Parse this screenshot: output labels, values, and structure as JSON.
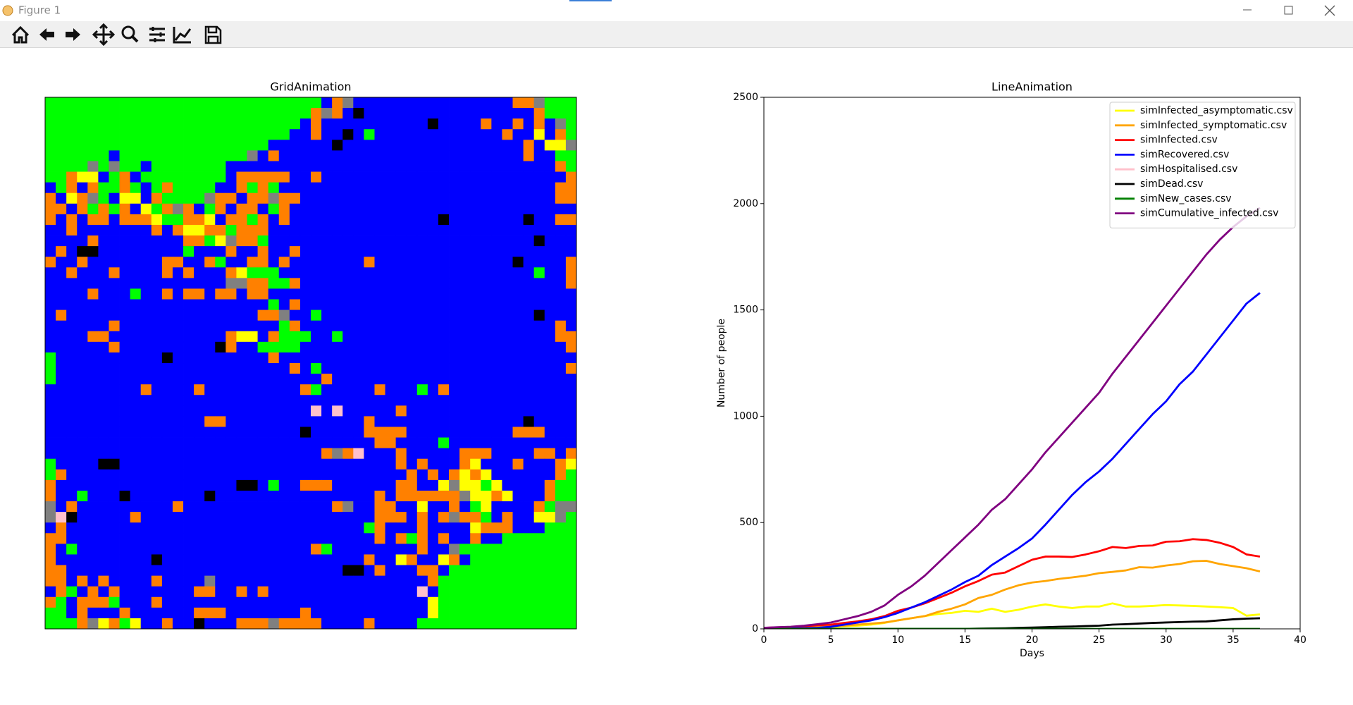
{
  "window": {
    "title": "Figure 1"
  },
  "chart_data": [
    {
      "type": "grid",
      "title": "GridAnimation",
      "palette": {
        "G": "#00ff00",
        "B": "#0000ff",
        "O": "#ff8000",
        "Y": "#ffff00",
        "K": "#000000",
        "A": "#808080",
        "P": "#ffc0cb"
      },
      "cells": [
        "GGGGGGGGGGGGGGGGGGGGGGGGGGBOABBBBBBBBBBBBBBBOOAGGG",
        "GGGGGGGGGGGGGGGGGGGGGGGGGOAOBKBBBBBBBBBBBBBBBBOGGG",
        "GGGGGGGGGGGGGGGGGGGGGGGGBOBBBBBBBBBBKBBBBOBBOBOBAG",
        "GGGGGGGGGGGGGGGGGGGGGGGBBOBBKBGBBBBBBBBBBBBOBBYBOG",
        "GGGGGGGGGGGGGGGGGGGGGBBBBBBKBBBBBBBBBBBBBBBBBOBYYA",
        "GGGGGGBGGGGGGGGGGGGABOBBBBBBBBBBBBBBBBBBBBBBBOBBGG",
        "GGGGAGAGGBGGGGGGGBBBBBBBBBBBBBBBBBBBBBBBBBBBBBBBOG",
        "GGOYYBGOBGGGGGGGGBOOOOOBBOBBBBBBBBBBBBBBBBBBBBBBBO",
        "BGOBOGGOGBGOGGGGBBOGOGBBBBBBBBBBBBBBBBBBBBBBBBBBOO",
        "OBYOAGBYYBOGGGGAOOBOOAOOBBBBBBBBBBBBBBBBBBBBBBBBOO",
        "OOBOGOGOBYGOAOBGOBOOBGOBBBBBBBBBBBBBBBBBBBBBBBBBBB",
        "OBOBOOBOOOYGGOOYBOOGOBOBBBBBBBBBBBBBBKBBBBBBBKBBOO",
        "BBOBBBBBBBOBOYYOOGOOOBBBBBBBBBBBBBBBBBBBBBBBBBBBBB",
        "BBBBOBBBBBBBBOOGYAOOGBBBBBBBBBBBBBBBBBBBBBBBBBKBBB",
        "BOBKKBBBBBBBBGBBBOBBOBBOBBBBBBBBBBBBBBBBBBBBBBBBBB",
        "OBBOBBBBBBBOOBBOGBBOOBOBBBBBBBOBBBBBBBBBBBBBKBBBBO",
        "BBOBBBOBBBBOBOBBBOYGGGBBBBBBBBBBBBBBBBBBBBBBBBGBBO",
        "BBBBBBBBBBBBBBBBBAAOOGGOBBBBBBBBBBBBBBBBBBBBBBBBBO",
        "BBBBOBBBGBBOBOOBOOBOOBBBBBBBBBBBBBBBBBBBBBBBBBBBBB",
        "BBBBBBBBBBBBBBBBBBBBBGBOBBBBBBBBBBBBBBBBBBBBBBBBBB",
        "BOBBBBBBBBBBBBBBBBBBOOABBGBBBBBBBBBBBBBBBBBBBBKBBB",
        "BBBBBBOBBBBBBBBBBBBBBBGOBBBBBBBBBBBBBBBBBBBBBBBBOB",
        "BBBBOOBBBBBBBBBBBOYYBOGGGBBGBBBBBBBBBBBBBBBBBBBBOO",
        "BBBBBBOBBBBBBBBBKOBBGGGGBBBBBBBBBBBBBBBBBBBBBBBBBO",
        "GBBBBBBBBBBKBBBBBBBBBOBBBBBBBBBBBBBBBBBBBBBBBBBBBB",
        "GBBBBBBBBBBBBBBBBBBBBBBOBGBBBBBBBBBBBBBBBBBBBBBBBO",
        "GBBBBBBBBBBBBBBBBBBBBBBBBBOBBBBBBBBBBBBBBBBBBBBBBB",
        "BBBBBBBBBOBBBBOBBBBBBBBBOGBBBBBOBBBGBOBBBBBBBBBBBB",
        "BBBBBBBBBBBBBBBBBBBBBBBBBBBBBBBBBBBBBBBBBBBBBBBBBB",
        "BBBBBBBBBBBBBBBBBBBBBBBBBPBPBBBBBOBBBBBBBBBBBBBBBB",
        "BBBBBBBBBBBBBBBOOBBBBBBBBBBBBBOBBBBBBBBBBBBBBKBBBB",
        "BBBBBBBBBBBBBBBBBBBBBBBBKBBBBBOOOOBBBBBBBBBBOOOBBB",
        "BBBBBBBBBBBBBBBBBBBBBBBBBBBBBBBOOBBBBGBBBBBBBBBBBB",
        "BBBBBBBBBBBBBBBBBBBBBBBBBBOAOPBBBOBBBBBOOOBBBBOOBO",
        "GBBBBKKBBBBBBBBBBBBBBBBBBBBBBBBBBOBOBBBOYBBBOBBBOY",
        "GOBBBBBBBBBBBBBBBBBBBBBBBBBBBBBBBBOBOBOYOYBBBBBBOG",
        "OBBBBBBBBBBBBBBBBBKKBGBBOOOBBBBBBOOBBYAYYGYBBBBOGG",
        "OBBGBBBKBBBBBBBKBBBBBBBBBBBBBBBOBOOOOOOAYYOYBBBOGG",
        "ABOBBBBBBBBBOBBBBBBBBBBBBBBOABBOOBBYBBOBGYBBBBOGAA",
        "APKBBBBBOBBBBBBBBBBBBBBBBBBBBBBOOOBOBOAOOGBOBBYYAG",
        "BOBBBBBBBBBBBBBBBBBBBBBBBBBBBBGOBBBOBBBBYOOOBBBGGG",
        "OOBBBBBBBBBBBBBBBBBBBBBBBBBBBBBOBOGOBOBBOBBGGGGGGG",
        "OBGBBBBBBBBBBBBBBBBBBBBBBOGBBBBBBBBOBBAGGGGGGGGGGG",
        "OBBBBBBBBBKBBBBBBBBBBBBBBBBBBBOBBYOBBYOBGGGGGGGGGG",
        "OOBBBBBBBBBBBBBBBBBBBBBBBBBBKKBOBBBOOBGGGGGGGGGGGG",
        "OOBOBOBBBBOBBBBABBBBBBBBBBBBBBBBBBBBOGGGGGGGGGGGGG",
        "BOGBOBOBBBBBBBOOBBOBOBBBBBBBBBBBBBBPBGGGGGGGGGGGGG",
        "OGBOOOGBBBOBBBBBBBBBBBBBBBBBBBBBBBBBYGGGGGGGGGGGGG",
        "GGBOBBBOBBBBBBOOOBBBBBBBOBBBBBBBBBBBYGGGGGGGGGGGGG",
        "GGGOAYOGYBBOBBKBBBOOOAOOOOBBBBOBBBBGGGGGGGGGGGGGGG"
      ]
    },
    {
      "type": "line",
      "title": "LineAnimation",
      "xlabel": "Days",
      "ylabel": "Number of people",
      "xlim": [
        0,
        40
      ],
      "xticks": [
        0,
        5,
        10,
        15,
        20,
        25,
        30,
        35,
        40
      ],
      "ylim": [
        0,
        2500
      ],
      "yticks": [
        0,
        500,
        1000,
        1500,
        2000,
        2500
      ],
      "legend": "upper right",
      "x": [
        0,
        1,
        2,
        3,
        4,
        5,
        6,
        7,
        8,
        9,
        10,
        11,
        12,
        13,
        14,
        15,
        16,
        17,
        18,
        19,
        20,
        21,
        22,
        23,
        24,
        25,
        26,
        27,
        28,
        29,
        30,
        31,
        32,
        33,
        34,
        35,
        36,
        37
      ],
      "series": [
        {
          "name": "simInfected_asymptomatic.csv",
          "color": "#ffff00",
          "values": [
            2,
            3,
            3,
            5,
            8,
            8,
            12,
            15,
            20,
            28,
            40,
            50,
            60,
            70,
            75,
            85,
            80,
            95,
            80,
            90,
            105,
            115,
            105,
            98,
            105,
            105,
            120,
            105,
            105,
            108,
            112,
            110,
            108,
            105,
            102,
            98,
            62,
            68
          ]
        },
        {
          "name": "simInfected_symptomatic.csv",
          "color": "#ffa500",
          "values": [
            3,
            4,
            5,
            7,
            9,
            12,
            15,
            20,
            25,
            30,
            40,
            50,
            60,
            80,
            95,
            115,
            145,
            160,
            185,
            205,
            218,
            225,
            235,
            242,
            250,
            262,
            268,
            275,
            290,
            288,
            298,
            305,
            318,
            320,
            305,
            295,
            285,
            270
          ]
        },
        {
          "name": "simInfected.csv",
          "color": "#ff0000",
          "values": [
            5,
            7,
            8,
            12,
            17,
            20,
            28,
            35,
            45,
            60,
            85,
            100,
            120,
            145,
            170,
            200,
            225,
            255,
            265,
            295,
            325,
            340,
            340,
            338,
            350,
            365,
            385,
            380,
            390,
            392,
            410,
            412,
            422,
            418,
            405,
            385,
            350,
            340
          ]
        },
        {
          "name": "simRecovered.csv",
          "color": "#0000ff",
          "values": [
            0,
            1,
            2,
            3,
            5,
            10,
            20,
            30,
            40,
            55,
            75,
            100,
            125,
            155,
            185,
            220,
            250,
            300,
            340,
            380,
            425,
            490,
            560,
            630,
            690,
            740,
            800,
            870,
            940,
            1010,
            1070,
            1150,
            1210,
            1290,
            1370,
            1450,
            1530,
            1580
          ]
        },
        {
          "name": "simHospitalised.csv",
          "color": "#ffc0cb",
          "values": [
            0,
            0,
            0,
            0,
            0,
            0,
            0,
            0,
            0,
            0,
            0,
            0,
            0,
            0,
            0,
            0,
            0,
            0,
            0,
            0,
            0,
            0,
            0,
            0,
            0,
            0,
            0,
            0,
            0,
            0,
            0,
            0,
            0,
            0,
            0,
            0,
            0,
            0
          ]
        },
        {
          "name": "simDead.csv",
          "color": "#000000",
          "values": [
            0,
            0,
            0,
            0,
            0,
            0,
            0,
            0,
            0,
            0,
            0,
            0,
            0,
            0,
            0,
            0,
            1,
            2,
            3,
            5,
            6,
            8,
            10,
            11,
            13,
            15,
            20,
            22,
            25,
            28,
            30,
            32,
            34,
            35,
            40,
            45,
            48,
            50
          ]
        },
        {
          "name": "simNew_cases.csv",
          "color": "#008000",
          "values": [
            0,
            0,
            0,
            0,
            0,
            0,
            0,
            0,
            0,
            0,
            0,
            0,
            0,
            0,
            0,
            0,
            0,
            0,
            0,
            0,
            0,
            0,
            0,
            0,
            0,
            0,
            0,
            0,
            0,
            0,
            0,
            0,
            0,
            0,
            0,
            0,
            0,
            0
          ]
        },
        {
          "name": "simCumulative_infected.csv",
          "color": "#800080",
          "values": [
            5,
            8,
            10,
            15,
            22,
            30,
            45,
            60,
            80,
            110,
            160,
            200,
            250,
            310,
            370,
            430,
            490,
            560,
            610,
            680,
            750,
            830,
            900,
            970,
            1040,
            1110,
            1200,
            1280,
            1360,
            1440,
            1520,
            1600,
            1680,
            1760,
            1830,
            1890,
            1940,
            1980
          ]
        }
      ]
    }
  ]
}
